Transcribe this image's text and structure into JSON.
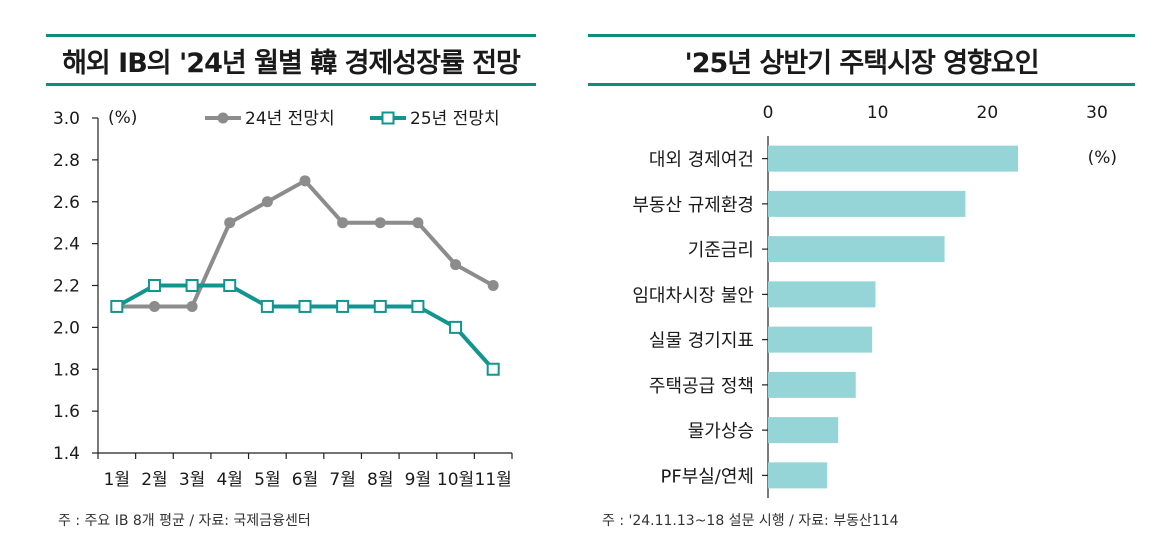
{
  "colors": {
    "accent": "#0e8c80",
    "series_2024": "#8c8c8c",
    "series_2025": "#12958f",
    "bar": "#95d5d8",
    "text": "#1a1a1a"
  },
  "left_panel": {
    "title": "해외 IB의 '24년 월별 韓 경제성장률 전망",
    "note": "주 : 주요 IB 8개 평균 / 자료: 국제금융센터"
  },
  "right_panel": {
    "title": "'25년 상반기 주택시장 영향요인",
    "note": "주 : '24.11.13~18 설문 시행 / 자료: 부동산114"
  },
  "chart_data": [
    {
      "type": "line",
      "title": "해외 IB의 '24년 월별 韓 경제성장률 전망",
      "unit_label": "(%)",
      "xlabel": "",
      "ylabel": "",
      "categories": [
        "1월",
        "2월",
        "3월",
        "4월",
        "5월",
        "6월",
        "7월",
        "8월",
        "9월",
        "10월",
        "11월"
      ],
      "y_ticks": [
        "3.0",
        "2.8",
        "2.6",
        "2.4",
        "2.2",
        "2.0",
        "1.8",
        "1.6",
        "1.4"
      ],
      "ylim": [
        1.4,
        3.0
      ],
      "series": [
        {
          "name": "24년 전망치",
          "marker": "circle",
          "values": [
            2.1,
            2.1,
            2.1,
            2.5,
            2.6,
            2.7,
            2.5,
            2.5,
            2.5,
            2.3,
            2.2
          ]
        },
        {
          "name": "25년 전망치",
          "marker": "square",
          "values": [
            2.1,
            2.2,
            2.2,
            2.2,
            2.1,
            2.1,
            2.1,
            2.1,
            2.1,
            2.0,
            1.8
          ]
        }
      ],
      "legend": "top-right"
    },
    {
      "type": "bar",
      "orientation": "horizontal",
      "title": "'25년 상반기 주택시장 영향요인",
      "unit_label": "(%)",
      "xlim": [
        0,
        30
      ],
      "x_ticks": [
        "0",
        "10",
        "20",
        "30"
      ],
      "categories": [
        "대외 경제여건",
        "부동산 규제환경",
        "기준금리",
        "임대차시장 불안",
        "실물 경기지표",
        "주택공급 정책",
        "물가상승",
        "PF부실/연체"
      ],
      "values": [
        22.8,
        18.0,
        16.1,
        9.8,
        9.5,
        8.0,
        6.4,
        5.4
      ]
    }
  ]
}
